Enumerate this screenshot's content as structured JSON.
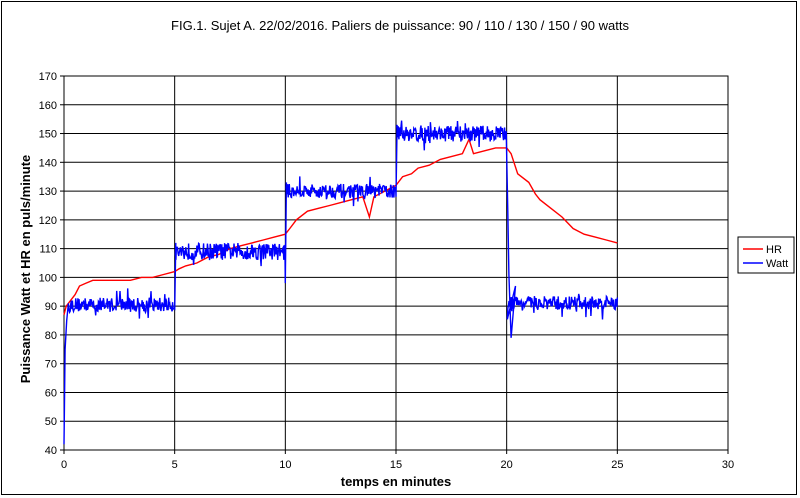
{
  "chart_data": {
    "type": "line",
    "title": "FIG.1. Sujet A. 22/02/2016.  Paliers de puissance:  90 / 110 / 130 / 150 / 90 watts",
    "xlabel": "temps en minutes",
    "ylabel": "Puissance Watt et HR en puls/minute",
    "xlim": [
      0,
      30
    ],
    "ylim": [
      40,
      170
    ],
    "x_ticks": [
      "0",
      "5",
      "10",
      "15",
      "20",
      "25",
      "30"
    ],
    "y_ticks": [
      "40",
      "50",
      "60",
      "70",
      "80",
      "90",
      "100",
      "110",
      "120",
      "130",
      "140",
      "150",
      "160",
      "170"
    ],
    "grid": true,
    "legend_position": "right",
    "series": [
      {
        "name": "HR",
        "color": "#ff0000",
        "x": [
          0,
          0.1,
          0.2,
          0.3,
          0.5,
          0.7,
          1.0,
          1.3,
          2.0,
          2.5,
          3.0,
          3.5,
          4.0,
          4.5,
          5.0,
          5.2,
          5.5,
          6.0,
          6.5,
          7.0,
          7.5,
          8.0,
          8.5,
          9.0,
          9.5,
          10.0,
          10.2,
          10.5,
          11.0,
          11.5,
          12.0,
          12.5,
          13.0,
          13.5,
          13.8,
          14.0,
          14.5,
          15.0,
          15.3,
          15.7,
          16.0,
          16.5,
          17.0,
          17.5,
          18.0,
          18.3,
          18.5,
          19.0,
          19.5,
          20.0,
          20.2,
          20.5,
          21.0,
          21.3,
          21.5,
          22.0,
          22.5,
          23.0,
          23.5,
          24.0,
          24.5,
          25.0
        ],
        "y": [
          87,
          90,
          91,
          92,
          94,
          97,
          98,
          99,
          99,
          99,
          99,
          100,
          100,
          101,
          102,
          103,
          104,
          105,
          107,
          108,
          110,
          111,
          112,
          113,
          114,
          115,
          117,
          120,
          123,
          124,
          125,
          126,
          127,
          128,
          121,
          128,
          130,
          132,
          135,
          136,
          138,
          139,
          141,
          142,
          143,
          148,
          143,
          144,
          145,
          145,
          143,
          136,
          133,
          129,
          127,
          124,
          121,
          117,
          115,
          114,
          113,
          112
        ]
      },
      {
        "name": "Watt",
        "color": "#0000ff",
        "segments": [
          {
            "x_start": 0.2,
            "x_end": 5.0,
            "base": 90.5,
            "noise": 2.5
          },
          {
            "x_start": 5.0,
            "x_end": 10.0,
            "base": 109,
            "noise": 3
          },
          {
            "x_start": 10.0,
            "x_end": 15.0,
            "base": 130,
            "noise": 2.5
          },
          {
            "x_start": 15.0,
            "x_end": 20.0,
            "base": 150,
            "noise": 2.8
          },
          {
            "x_start": 20.0,
            "x_end": 25.0,
            "base": 91,
            "noise": 2.5
          }
        ],
        "key_points": {
          "x": [
            0,
            0.05,
            0.12,
            0.2,
            0.3,
            5.0,
            5.05,
            10.0,
            10.05,
            15.0,
            15.05,
            20.0,
            20.05,
            20.1,
            20.2,
            20.4,
            25.0
          ],
          "y": [
            42,
            75,
            85,
            91,
            83,
            89,
            112,
            98,
            133,
            128,
            153,
            142,
            123,
            101,
            79,
            97,
            93
          ]
        }
      }
    ]
  }
}
